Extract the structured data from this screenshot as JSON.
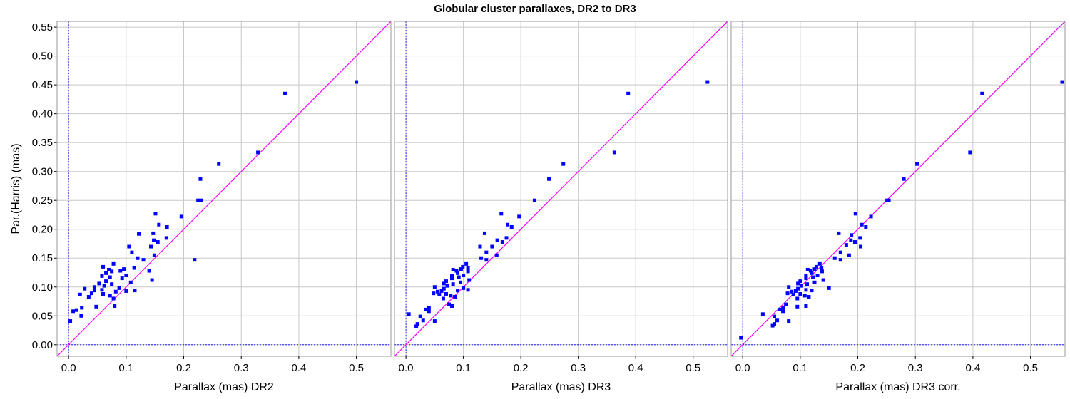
{
  "chart_data": {
    "type": "scatter",
    "title": "Globular cluster parallaxes, DR2 to DR3",
    "ylabel": "Par.(Harris) (mas)",
    "ylim": [
      -0.02,
      0.56
    ],
    "yticks": [
      "0.00",
      "0.05",
      "0.10",
      "0.15",
      "0.20",
      "0.25",
      "0.30",
      "0.35",
      "0.40",
      "0.45",
      "0.50",
      "0.55"
    ],
    "xticks": [
      "0.0",
      "0.1",
      "0.2",
      "0.3",
      "0.4",
      "0.5"
    ],
    "grid": true,
    "colors": {
      "points": "#0000ff",
      "identity_line": "#ff00ff",
      "zero_lines": "#0000ff",
      "grid": "#c8c8c8"
    },
    "panels": [
      {
        "xlabel": "Parallax (mas) DR2",
        "xlim": [
          -0.02,
          0.56
        ],
        "points": [
          {
            "x": 0.5,
            "y": 0.455
          },
          {
            "x": 0.376,
            "y": 0.435
          },
          {
            "x": 0.329,
            "y": 0.333
          },
          {
            "x": 0.261,
            "y": 0.313
          },
          {
            "x": 0.229,
            "y": 0.287
          },
          {
            "x": 0.23,
            "y": 0.25
          },
          {
            "x": 0.225,
            "y": 0.25
          },
          {
            "x": 0.151,
            "y": 0.227
          },
          {
            "x": 0.196,
            "y": 0.222
          },
          {
            "x": 0.157,
            "y": 0.208
          },
          {
            "x": 0.171,
            "y": 0.204
          },
          {
            "x": 0.147,
            "y": 0.193
          },
          {
            "x": 0.122,
            "y": 0.192
          },
          {
            "x": 0.17,
            "y": 0.185
          },
          {
            "x": 0.148,
            "y": 0.181
          },
          {
            "x": 0.155,
            "y": 0.178
          },
          {
            "x": 0.143,
            "y": 0.17
          },
          {
            "x": 0.105,
            "y": 0.17
          },
          {
            "x": 0.11,
            "y": 0.16
          },
          {
            "x": 0.149,
            "y": 0.155
          },
          {
            "x": 0.12,
            "y": 0.15
          },
          {
            "x": 0.13,
            "y": 0.147
          },
          {
            "x": 0.219,
            "y": 0.147
          },
          {
            "x": 0.078,
            "y": 0.14
          },
          {
            "x": 0.06,
            "y": 0.135
          },
          {
            "x": 0.114,
            "y": 0.133
          },
          {
            "x": 0.096,
            "y": 0.131
          },
          {
            "x": 0.07,
            "y": 0.13
          },
          {
            "x": 0.09,
            "y": 0.128
          },
          {
            "x": 0.14,
            "y": 0.128
          },
          {
            "x": 0.075,
            "y": 0.127
          },
          {
            "x": 0.065,
            "y": 0.124
          },
          {
            "x": 0.1,
            "y": 0.12
          },
          {
            "x": 0.058,
            "y": 0.119
          },
          {
            "x": 0.072,
            "y": 0.117
          },
          {
            "x": 0.093,
            "y": 0.115
          },
          {
            "x": 0.145,
            "y": 0.112
          },
          {
            "x": 0.065,
            "y": 0.11
          },
          {
            "x": 0.108,
            "y": 0.108
          },
          {
            "x": 0.053,
            "y": 0.106
          },
          {
            "x": 0.075,
            "y": 0.105
          },
          {
            "x": 0.062,
            "y": 0.102
          },
          {
            "x": 0.045,
            "y": 0.1
          },
          {
            "x": 0.088,
            "y": 0.098
          },
          {
            "x": 0.028,
            "y": 0.097
          },
          {
            "x": 0.058,
            "y": 0.095
          },
          {
            "x": 0.045,
            "y": 0.094
          },
          {
            "x": 0.115,
            "y": 0.094
          },
          {
            "x": 0.1,
            "y": 0.093
          },
          {
            "x": 0.082,
            "y": 0.092
          },
          {
            "x": 0.04,
            "y": 0.089
          },
          {
            "x": 0.06,
            "y": 0.088
          },
          {
            "x": 0.02,
            "y": 0.087
          },
          {
            "x": 0.072,
            "y": 0.085
          },
          {
            "x": 0.035,
            "y": 0.083
          },
          {
            "x": 0.078,
            "y": 0.08
          },
          {
            "x": 0.08,
            "y": 0.067
          },
          {
            "x": 0.048,
            "y": 0.066
          },
          {
            "x": 0.023,
            "y": 0.064
          },
          {
            "x": 0.014,
            "y": 0.06
          },
          {
            "x": 0.008,
            "y": 0.058
          },
          {
            "x": 0.022,
            "y": 0.05
          },
          {
            "x": 0.003,
            "y": 0.041
          }
        ]
      },
      {
        "xlabel": "Parallax (mas) DR3",
        "xlim": [
          -0.02,
          0.56
        ],
        "points": [
          {
            "x": 0.525,
            "y": 0.455
          },
          {
            "x": 0.387,
            "y": 0.435
          },
          {
            "x": 0.363,
            "y": 0.333
          },
          {
            "x": 0.274,
            "y": 0.313
          },
          {
            "x": 0.249,
            "y": 0.287
          },
          {
            "x": 0.224,
            "y": 0.25
          },
          {
            "x": 0.166,
            "y": 0.227
          },
          {
            "x": 0.197,
            "y": 0.222
          },
          {
            "x": 0.177,
            "y": 0.208
          },
          {
            "x": 0.184,
            "y": 0.204
          },
          {
            "x": 0.137,
            "y": 0.193
          },
          {
            "x": 0.175,
            "y": 0.185
          },
          {
            "x": 0.159,
            "y": 0.181
          },
          {
            "x": 0.168,
            "y": 0.178
          },
          {
            "x": 0.15,
            "y": 0.17
          },
          {
            "x": 0.129,
            "y": 0.17
          },
          {
            "x": 0.14,
            "y": 0.16
          },
          {
            "x": 0.158,
            "y": 0.155
          },
          {
            "x": 0.131,
            "y": 0.15
          },
          {
            "x": 0.14,
            "y": 0.147
          },
          {
            "x": 0.105,
            "y": 0.14
          },
          {
            "x": 0.099,
            "y": 0.135
          },
          {
            "x": 0.108,
            "y": 0.133
          },
          {
            "x": 0.096,
            "y": 0.131
          },
          {
            "x": 0.082,
            "y": 0.13
          },
          {
            "x": 0.088,
            "y": 0.128
          },
          {
            "x": 0.108,
            "y": 0.127
          },
          {
            "x": 0.09,
            "y": 0.124
          },
          {
            "x": 0.1,
            "y": 0.12
          },
          {
            "x": 0.08,
            "y": 0.119
          },
          {
            "x": 0.092,
            "y": 0.117
          },
          {
            "x": 0.08,
            "y": 0.115
          },
          {
            "x": 0.11,
            "y": 0.112
          },
          {
            "x": 0.07,
            "y": 0.11
          },
          {
            "x": 0.095,
            "y": 0.108
          },
          {
            "x": 0.066,
            "y": 0.106
          },
          {
            "x": 0.082,
            "y": 0.105
          },
          {
            "x": 0.072,
            "y": 0.102
          },
          {
            "x": 0.05,
            "y": 0.1
          },
          {
            "x": 0.1,
            "y": 0.098
          },
          {
            "x": 0.066,
            "y": 0.097
          },
          {
            "x": 0.108,
            "y": 0.095
          },
          {
            "x": 0.09,
            "y": 0.094
          },
          {
            "x": 0.062,
            "y": 0.093
          },
          {
            "x": 0.055,
            "y": 0.092
          },
          {
            "x": 0.048,
            "y": 0.089
          },
          {
            "x": 0.07,
            "y": 0.088
          },
          {
            "x": 0.058,
            "y": 0.087
          },
          {
            "x": 0.078,
            "y": 0.085
          },
          {
            "x": 0.085,
            "y": 0.083
          },
          {
            "x": 0.065,
            "y": 0.08
          },
          {
            "x": 0.075,
            "y": 0.07
          },
          {
            "x": 0.08,
            "y": 0.067
          },
          {
            "x": 0.04,
            "y": 0.064
          },
          {
            "x": 0.035,
            "y": 0.061
          },
          {
            "x": 0.04,
            "y": 0.058
          },
          {
            "x": 0.005,
            "y": 0.053
          },
          {
            "x": 0.025,
            "y": 0.049
          },
          {
            "x": 0.03,
            "y": 0.042
          },
          {
            "x": 0.02,
            "y": 0.036
          },
          {
            "x": 0.018,
            "y": 0.032
          },
          {
            "x": 0.05,
            "y": 0.041
          }
        ]
      },
      {
        "xlabel": "Parallax (mas) DR3 corr.",
        "xlim": [
          -0.02,
          0.56
        ],
        "points": [
          {
            "x": 0.555,
            "y": 0.455
          },
          {
            "x": 0.416,
            "y": 0.435
          },
          {
            "x": 0.395,
            "y": 0.333
          },
          {
            "x": 0.303,
            "y": 0.313
          },
          {
            "x": 0.28,
            "y": 0.287
          },
          {
            "x": 0.254,
            "y": 0.25
          },
          {
            "x": 0.251,
            "y": 0.25
          },
          {
            "x": 0.196,
            "y": 0.227
          },
          {
            "x": 0.223,
            "y": 0.222
          },
          {
            "x": 0.207,
            "y": 0.208
          },
          {
            "x": 0.214,
            "y": 0.204
          },
          {
            "x": 0.167,
            "y": 0.193
          },
          {
            "x": 0.189,
            "y": 0.19
          },
          {
            "x": 0.204,
            "y": 0.185
          },
          {
            "x": 0.188,
            "y": 0.181
          },
          {
            "x": 0.195,
            "y": 0.178
          },
          {
            "x": 0.18,
            "y": 0.173
          },
          {
            "x": 0.205,
            "y": 0.17
          },
          {
            "x": 0.17,
            "y": 0.16
          },
          {
            "x": 0.185,
            "y": 0.155
          },
          {
            "x": 0.16,
            "y": 0.15
          },
          {
            "x": 0.17,
            "y": 0.147
          },
          {
            "x": 0.134,
            "y": 0.14
          },
          {
            "x": 0.128,
            "y": 0.135
          },
          {
            "x": 0.137,
            "y": 0.133
          },
          {
            "x": 0.125,
            "y": 0.131
          },
          {
            "x": 0.113,
            "y": 0.13
          },
          {
            "x": 0.118,
            "y": 0.128
          },
          {
            "x": 0.138,
            "y": 0.127
          },
          {
            "x": 0.12,
            "y": 0.124
          },
          {
            "x": 0.13,
            "y": 0.12
          },
          {
            "x": 0.11,
            "y": 0.119
          },
          {
            "x": 0.122,
            "y": 0.117
          },
          {
            "x": 0.11,
            "y": 0.115
          },
          {
            "x": 0.14,
            "y": 0.112
          },
          {
            "x": 0.1,
            "y": 0.11
          },
          {
            "x": 0.125,
            "y": 0.108
          },
          {
            "x": 0.096,
            "y": 0.106
          },
          {
            "x": 0.112,
            "y": 0.105
          },
          {
            "x": 0.102,
            "y": 0.102
          },
          {
            "x": 0.08,
            "y": 0.1
          },
          {
            "x": 0.15,
            "y": 0.098
          },
          {
            "x": 0.096,
            "y": 0.097
          },
          {
            "x": 0.11,
            "y": 0.095
          },
          {
            "x": 0.12,
            "y": 0.094
          },
          {
            "x": 0.092,
            "y": 0.093
          },
          {
            "x": 0.085,
            "y": 0.092
          },
          {
            "x": 0.078,
            "y": 0.089
          },
          {
            "x": 0.1,
            "y": 0.088
          },
          {
            "x": 0.088,
            "y": 0.087
          },
          {
            "x": 0.108,
            "y": 0.085
          },
          {
            "x": 0.115,
            "y": 0.083
          },
          {
            "x": 0.095,
            "y": 0.08
          },
          {
            "x": 0.075,
            "y": 0.07
          },
          {
            "x": 0.11,
            "y": 0.067
          },
          {
            "x": 0.095,
            "y": 0.066
          },
          {
            "x": 0.07,
            "y": 0.064
          },
          {
            "x": 0.065,
            "y": 0.061
          },
          {
            "x": 0.07,
            "y": 0.058
          },
          {
            "x": 0.035,
            "y": 0.053
          },
          {
            "x": 0.055,
            "y": 0.049
          },
          {
            "x": 0.06,
            "y": 0.042
          },
          {
            "x": 0.055,
            "y": 0.036
          },
          {
            "x": 0.052,
            "y": 0.033
          },
          {
            "x": 0.08,
            "y": 0.041
          },
          {
            "x": -0.003,
            "y": 0.012
          }
        ]
      }
    ]
  }
}
